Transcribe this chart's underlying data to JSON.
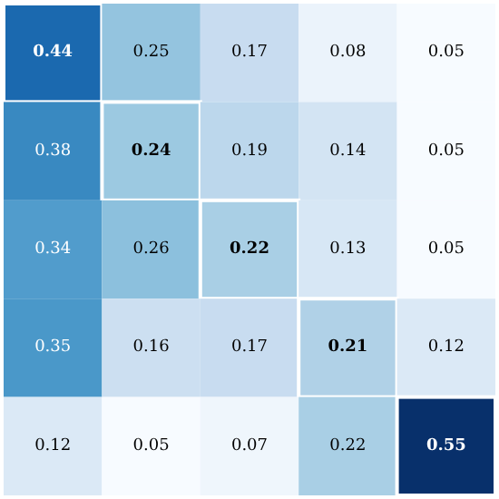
{
  "chart_data": {
    "type": "heatmap",
    "categories": [
      null,
      null,
      null,
      null,
      null
    ],
    "y_categories": [
      null,
      null,
      null,
      null,
      null
    ],
    "cells": [
      [
        0.44,
        0.25,
        0.17,
        0.08,
        0.05
      ],
      [
        0.38,
        0.24,
        0.19,
        0.14,
        0.05
      ],
      [
        0.34,
        0.26,
        0.22,
        0.13,
        0.05
      ],
      [
        0.35,
        0.16,
        0.17,
        0.21,
        0.12
      ],
      [
        0.12,
        0.05,
        0.07,
        0.22,
        0.55
      ]
    ],
    "data_labels": true,
    "tick_labels": false
  }
}
